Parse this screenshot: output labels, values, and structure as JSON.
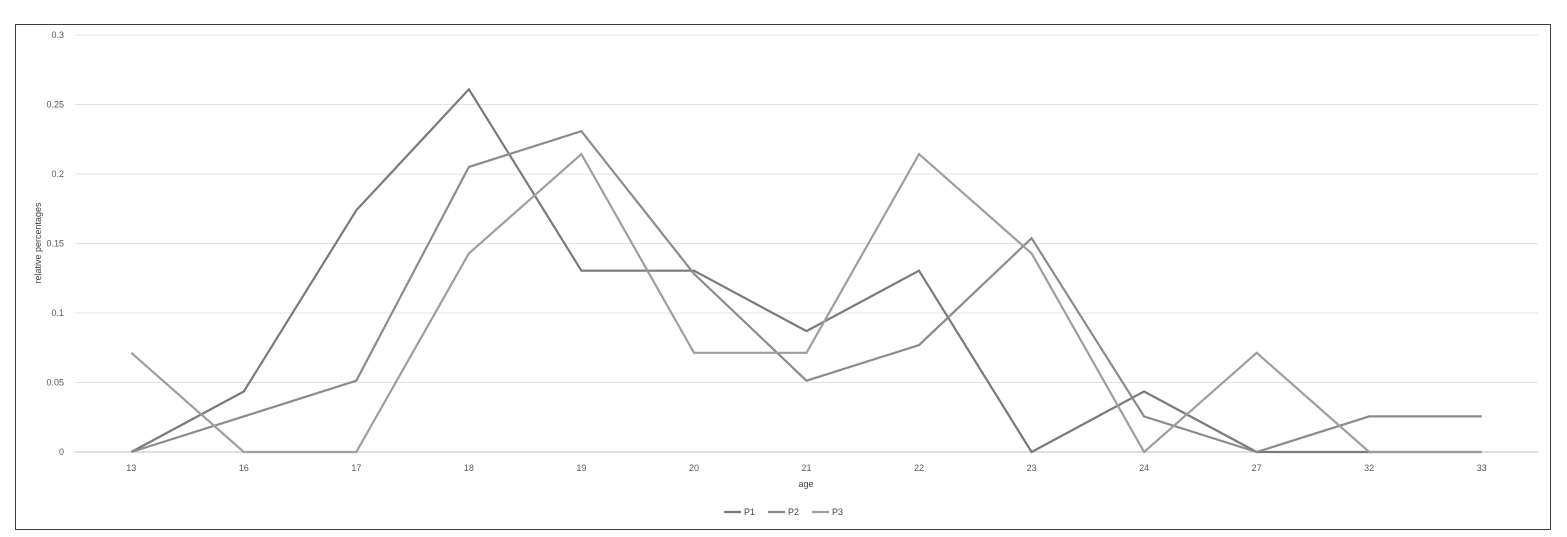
{
  "chart_data": {
    "type": "line",
    "title": "",
    "xlabel": "age",
    "ylabel": "relative percentages",
    "categories": [
      "13",
      "16",
      "17",
      "18",
      "19",
      "20",
      "21",
      "22",
      "23",
      "24",
      "27",
      "32",
      "33"
    ],
    "y_ticks": [
      "0",
      "0.05",
      "0.1",
      "0.15",
      "0.2",
      "0.25",
      "0.3"
    ],
    "ylim": [
      0,
      0.3
    ],
    "grid": "horizontal",
    "legend_position": "bottom",
    "series": [
      {
        "name": "P1",
        "color": "#7a7a7a",
        "values": [
          0,
          0.0435,
          0.1739,
          0.2609,
          0.1304,
          0.1304,
          0.087,
          0.1304,
          0,
          0.0435,
          0,
          0,
          0
        ]
      },
      {
        "name": "P2",
        "color": "#8c8c8c",
        "values": [
          0,
          0.0256,
          0.0513,
          0.2051,
          0.2308,
          0.1282,
          0.0513,
          0.0769,
          0.1538,
          0.0256,
          0,
          0.0256,
          0.0256
        ]
      },
      {
        "name": "P3",
        "color": "#9e9e9e",
        "values": [
          0.0714,
          0,
          0,
          0.1429,
          0.2143,
          0.0714,
          0.0714,
          0.2143,
          0.1429,
          0,
          0.0714,
          0,
          0
        ]
      }
    ]
  }
}
